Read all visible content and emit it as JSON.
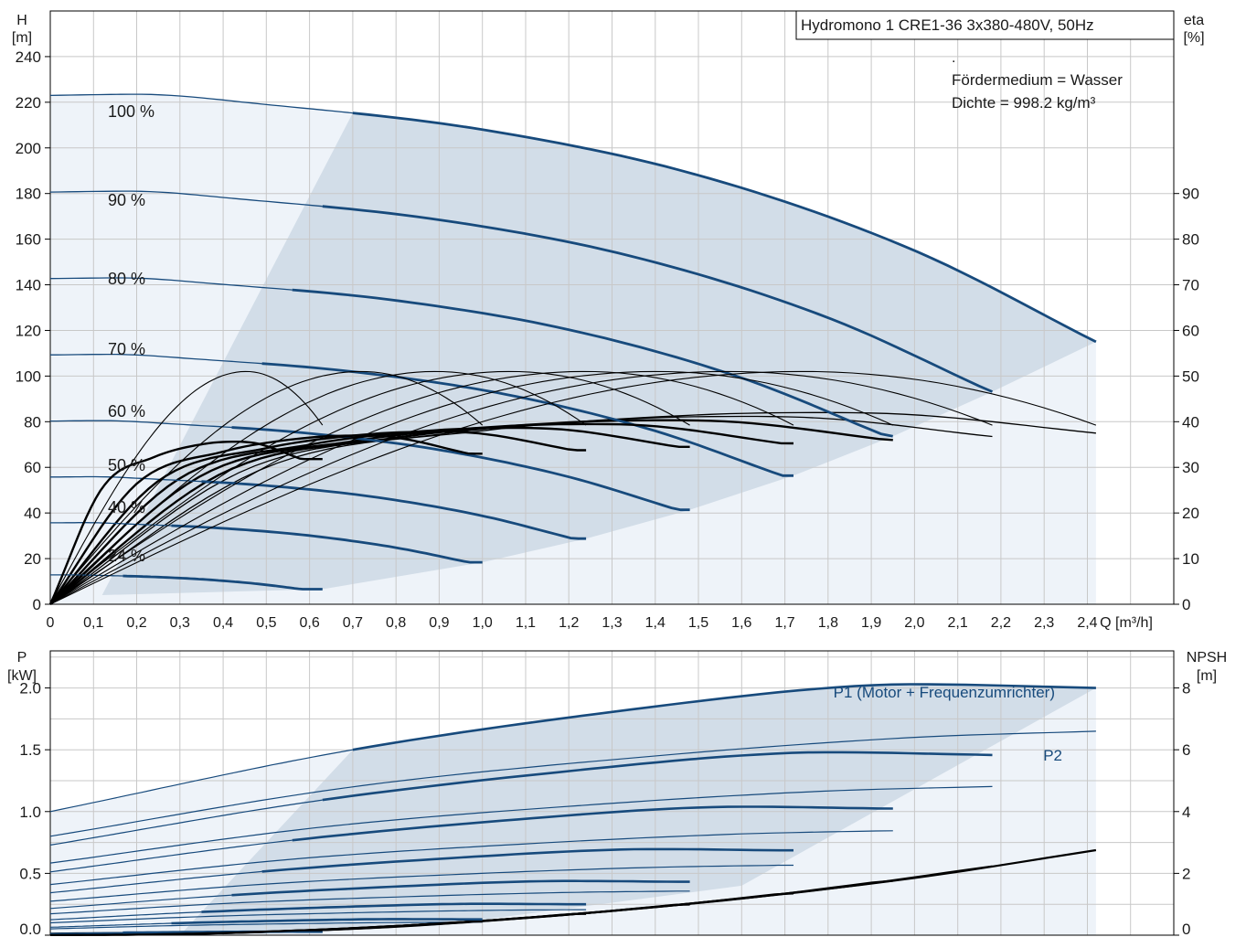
{
  "chart_data": [
    {
      "type": "line",
      "title": "Hydromono 1 CRE1-36  3x380-480V, 50Hz",
      "info_lines": [
        ".",
        "Fördermedium = Wasser",
        "Dichte = 998.2 kg/m³"
      ],
      "y_left_label": [
        "H",
        "[m]"
      ],
      "y_right_label": [
        "eta",
        "[%]"
      ],
      "x_unit_label": "Q [m³/h]",
      "xlim": [
        0,
        2.6
      ],
      "ylim": [
        0,
        260
      ],
      "y2lim": [
        0,
        130
      ],
      "x_ticks": [
        "0",
        "0,1",
        "0,2",
        "0,3",
        "0,4",
        "0,5",
        "0,6",
        "0,7",
        "0,8",
        "0,9",
        "1,0",
        "1,1",
        "1,2",
        "1,3",
        "1,4",
        "1,5",
        "1,6",
        "1,7",
        "1,8",
        "1,9",
        "2,0",
        "2,1",
        "2,2",
        "2,3",
        "2,4"
      ],
      "y_ticks": [
        "0",
        "20",
        "40",
        "60",
        "80",
        "100",
        "120",
        "140",
        "160",
        "180",
        "200",
        "220",
        "240"
      ],
      "y2_ticks": [
        "0",
        "10",
        "20",
        "30",
        "40",
        "50",
        "60",
        "70",
        "80",
        "90"
      ],
      "grid": true,
      "speed_curves": [
        {
          "label": "100 %",
          "fraction": 1.0,
          "qmax": 2.42
        },
        {
          "label": "90 %",
          "fraction": 0.9,
          "qmax": 2.18
        },
        {
          "label": "80 %",
          "fraction": 0.8,
          "qmax": 1.95
        },
        {
          "label": "70 %",
          "fraction": 0.7,
          "qmax": 1.72
        },
        {
          "label": "60 %",
          "fraction": 0.6,
          "qmax": 1.48
        },
        {
          "label": "50 %",
          "fraction": 0.5,
          "qmax": 1.24
        },
        {
          "label": "40 %",
          "fraction": 0.4,
          "qmax": 1.0
        },
        {
          "label": "24 %",
          "fraction": 0.24,
          "qmax": 0.63
        }
      ],
      "head_curve_100": {
        "q": [
          0,
          0.2,
          0.5,
          1.0,
          1.5,
          2.0,
          2.42
        ],
        "h": [
          223,
          223.5,
          219,
          208,
          188,
          155,
          115
        ]
      },
      "eta_curve_100": {
        "q": [
          0,
          0.5,
          1.0,
          1.5,
          1.8,
          2.0,
          2.42
        ],
        "eta": [
          0,
          30,
          38,
          41.5,
          42,
          41.5,
          37.5
        ]
      },
      "line_colors": {
        "head": "#174a7c",
        "eta": "#000000",
        "band_dark": "#d2dde8",
        "band_light": "#eef3f9"
      }
    },
    {
      "type": "line",
      "y_left_label": [
        "P",
        "[kW]"
      ],
      "y_right_label": [
        "NPSH",
        "[m]"
      ],
      "xlim": [
        0,
        2.6
      ],
      "ylim": [
        0,
        2.3
      ],
      "y2lim": [
        0,
        9.2
      ],
      "y_ticks": [
        "0.0",
        "0.5",
        "1.0",
        "1.5",
        "2.0"
      ],
      "y2_ticks": [
        "0",
        "2",
        "4",
        "6",
        "8"
      ],
      "grid": true,
      "series_labels": [
        "P1 (Motor + Frequenzumrichter)",
        "P2"
      ],
      "p1_100": {
        "q": [
          0,
          0.7,
          1.4,
          1.8,
          2.0,
          2.42
        ],
        "p": [
          1.0,
          1.5,
          1.85,
          2.0,
          2.03,
          2.0
        ]
      },
      "p2_100": {
        "q": [
          0,
          0.7,
          1.4,
          2.0,
          2.42
        ],
        "p": [
          0.8,
          1.2,
          1.45,
          1.6,
          1.65
        ]
      },
      "npsh": {
        "q": [
          0,
          0.6,
          1.0,
          1.5,
          2.0,
          2.42
        ],
        "npsh": [
          0.05,
          0.15,
          0.45,
          1.05,
          1.85,
          2.75
        ]
      }
    }
  ]
}
